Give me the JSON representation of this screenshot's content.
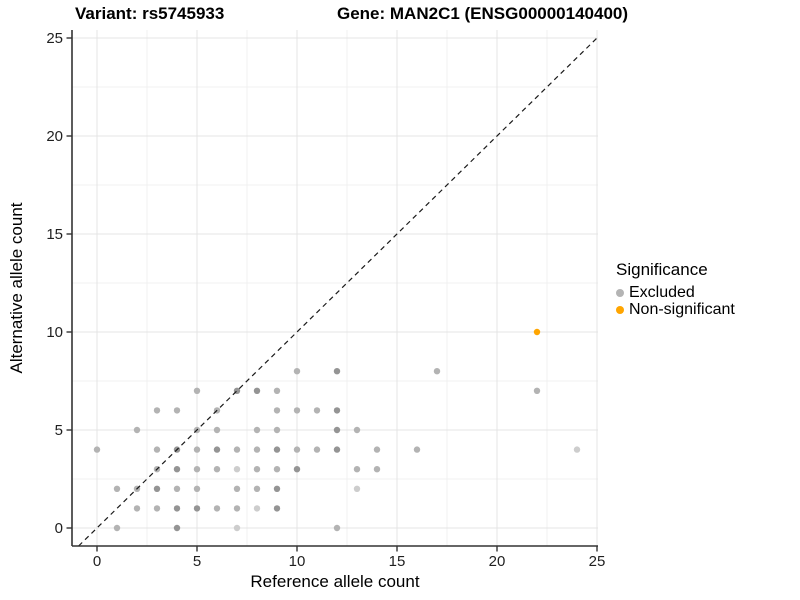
{
  "title": {
    "variant": "Variant: rs5745933",
    "gene": "Gene: MAN2C1 (ENSG00000140400)"
  },
  "x_axis": {
    "title": "Reference allele count",
    "tick_labels": [
      "0",
      "5",
      "10",
      "15",
      "20",
      "25"
    ]
  },
  "y_axis": {
    "title": "Alternative allele count",
    "tick_labels": [
      "0",
      "5",
      "10",
      "15",
      "20",
      "25"
    ]
  },
  "legend": {
    "title": "Significance",
    "items": [
      {
        "label": "Excluded",
        "color": "#b4b4b4"
      },
      {
        "label": "Non-significant",
        "color": "#ffa500"
      }
    ]
  },
  "colors": {
    "shades": {
      "faint": "#cdcdcd",
      "normal": "#b3b3b3",
      "dark": "#949494"
    },
    "orange": "#ffa500",
    "grid_major": "#e4e4e4",
    "grid_minor": "#f1f1f1",
    "axis_line": "#333333",
    "identity_line": "#1a1a1a",
    "tick_text": "#1f1f1f"
  },
  "chart_data": {
    "type": "scatter",
    "title": "Variant: rs5745933 / Gene: MAN2C1 (ENSG00000140400)",
    "xlabel": "Reference allele count",
    "ylabel": "Alternative allele count",
    "xlim": [
      0,
      25
    ],
    "ylim": [
      0,
      25
    ],
    "x_ticks": [
      0,
      5,
      10,
      15,
      20,
      25
    ],
    "y_ticks": [
      0,
      5,
      10,
      15,
      20,
      25
    ],
    "minor_ticks": [
      2.5,
      7.5,
      12.5,
      17.5,
      22.5
    ],
    "grid": true,
    "legend_position": "right",
    "identity_line": {
      "type": "y=x",
      "style": "dashed",
      "color": "black"
    },
    "series": [
      {
        "name": "Excluded",
        "color": "#b3b3b3",
        "points": [
          {
            "x": 1,
            "y": 0,
            "shade": "normal"
          },
          {
            "x": 4,
            "y": 0,
            "shade": "dark"
          },
          {
            "x": 7,
            "y": 0,
            "shade": "faint"
          },
          {
            "x": 12,
            "y": 0,
            "shade": "normal"
          },
          {
            "x": 2,
            "y": 1,
            "shade": "normal"
          },
          {
            "x": 3,
            "y": 1,
            "shade": "normal"
          },
          {
            "x": 4,
            "y": 1,
            "shade": "dark"
          },
          {
            "x": 5,
            "y": 1,
            "shade": "dark"
          },
          {
            "x": 6,
            "y": 1,
            "shade": "normal"
          },
          {
            "x": 7,
            "y": 1,
            "shade": "normal"
          },
          {
            "x": 8,
            "y": 1,
            "shade": "faint"
          },
          {
            "x": 9,
            "y": 1,
            "shade": "dark"
          },
          {
            "x": 1,
            "y": 2,
            "shade": "normal"
          },
          {
            "x": 2,
            "y": 2,
            "shade": "normal"
          },
          {
            "x": 3,
            "y": 2,
            "shade": "dark"
          },
          {
            "x": 4,
            "y": 2,
            "shade": "normal"
          },
          {
            "x": 5,
            "y": 2,
            "shade": "normal"
          },
          {
            "x": 7,
            "y": 2,
            "shade": "normal"
          },
          {
            "x": 8,
            "y": 2,
            "shade": "normal"
          },
          {
            "x": 9,
            "y": 2,
            "shade": "dark"
          },
          {
            "x": 13,
            "y": 2,
            "shade": "faint"
          },
          {
            "x": 3,
            "y": 3,
            "shade": "normal"
          },
          {
            "x": 4,
            "y": 3,
            "shade": "dark"
          },
          {
            "x": 5,
            "y": 3,
            "shade": "normal"
          },
          {
            "x": 6,
            "y": 3,
            "shade": "normal"
          },
          {
            "x": 7,
            "y": 3,
            "shade": "faint"
          },
          {
            "x": 8,
            "y": 3,
            "shade": "normal"
          },
          {
            "x": 9,
            "y": 3,
            "shade": "normal"
          },
          {
            "x": 10,
            "y": 3,
            "shade": "dark"
          },
          {
            "x": 13,
            "y": 3,
            "shade": "normal"
          },
          {
            "x": 14,
            "y": 3,
            "shade": "normal"
          },
          {
            "x": 0,
            "y": 4,
            "shade": "normal"
          },
          {
            "x": 3,
            "y": 4,
            "shade": "normal"
          },
          {
            "x": 4,
            "y": 4,
            "shade": "dark"
          },
          {
            "x": 5,
            "y": 4,
            "shade": "normal"
          },
          {
            "x": 6,
            "y": 4,
            "shade": "dark"
          },
          {
            "x": 7,
            "y": 4,
            "shade": "normal"
          },
          {
            "x": 8,
            "y": 4,
            "shade": "normal"
          },
          {
            "x": 9,
            "y": 4,
            "shade": "dark"
          },
          {
            "x": 10,
            "y": 4,
            "shade": "normal"
          },
          {
            "x": 11,
            "y": 4,
            "shade": "normal"
          },
          {
            "x": 12,
            "y": 4,
            "shade": "dark"
          },
          {
            "x": 14,
            "y": 4,
            "shade": "normal"
          },
          {
            "x": 16,
            "y": 4,
            "shade": "normal"
          },
          {
            "x": 24,
            "y": 4,
            "shade": "faint"
          },
          {
            "x": 2,
            "y": 5,
            "shade": "normal"
          },
          {
            "x": 5,
            "y": 5,
            "shade": "normal"
          },
          {
            "x": 6,
            "y": 5,
            "shade": "normal"
          },
          {
            "x": 8,
            "y": 5,
            "shade": "normal"
          },
          {
            "x": 9,
            "y": 5,
            "shade": "normal"
          },
          {
            "x": 12,
            "y": 5,
            "shade": "dark"
          },
          {
            "x": 13,
            "y": 5,
            "shade": "normal"
          },
          {
            "x": 3,
            "y": 6,
            "shade": "normal"
          },
          {
            "x": 4,
            "y": 6,
            "shade": "normal"
          },
          {
            "x": 6,
            "y": 6,
            "shade": "normal"
          },
          {
            "x": 9,
            "y": 6,
            "shade": "normal"
          },
          {
            "x": 10,
            "y": 6,
            "shade": "normal"
          },
          {
            "x": 11,
            "y": 6,
            "shade": "normal"
          },
          {
            "x": 12,
            "y": 6,
            "shade": "dark"
          },
          {
            "x": 5,
            "y": 7,
            "shade": "normal"
          },
          {
            "x": 7,
            "y": 7,
            "shade": "dark"
          },
          {
            "x": 8,
            "y": 7,
            "shade": "dark"
          },
          {
            "x": 9,
            "y": 7,
            "shade": "normal"
          },
          {
            "x": 22,
            "y": 7,
            "shade": "normal"
          },
          {
            "x": 10,
            "y": 8,
            "shade": "normal"
          },
          {
            "x": 12,
            "y": 8,
            "shade": "dark"
          },
          {
            "x": 17,
            "y": 8,
            "shade": "normal"
          }
        ]
      },
      {
        "name": "Non-significant",
        "color": "#ffa500",
        "points": [
          {
            "x": 22,
            "y": 10,
            "shade": "normal"
          }
        ]
      }
    ]
  }
}
